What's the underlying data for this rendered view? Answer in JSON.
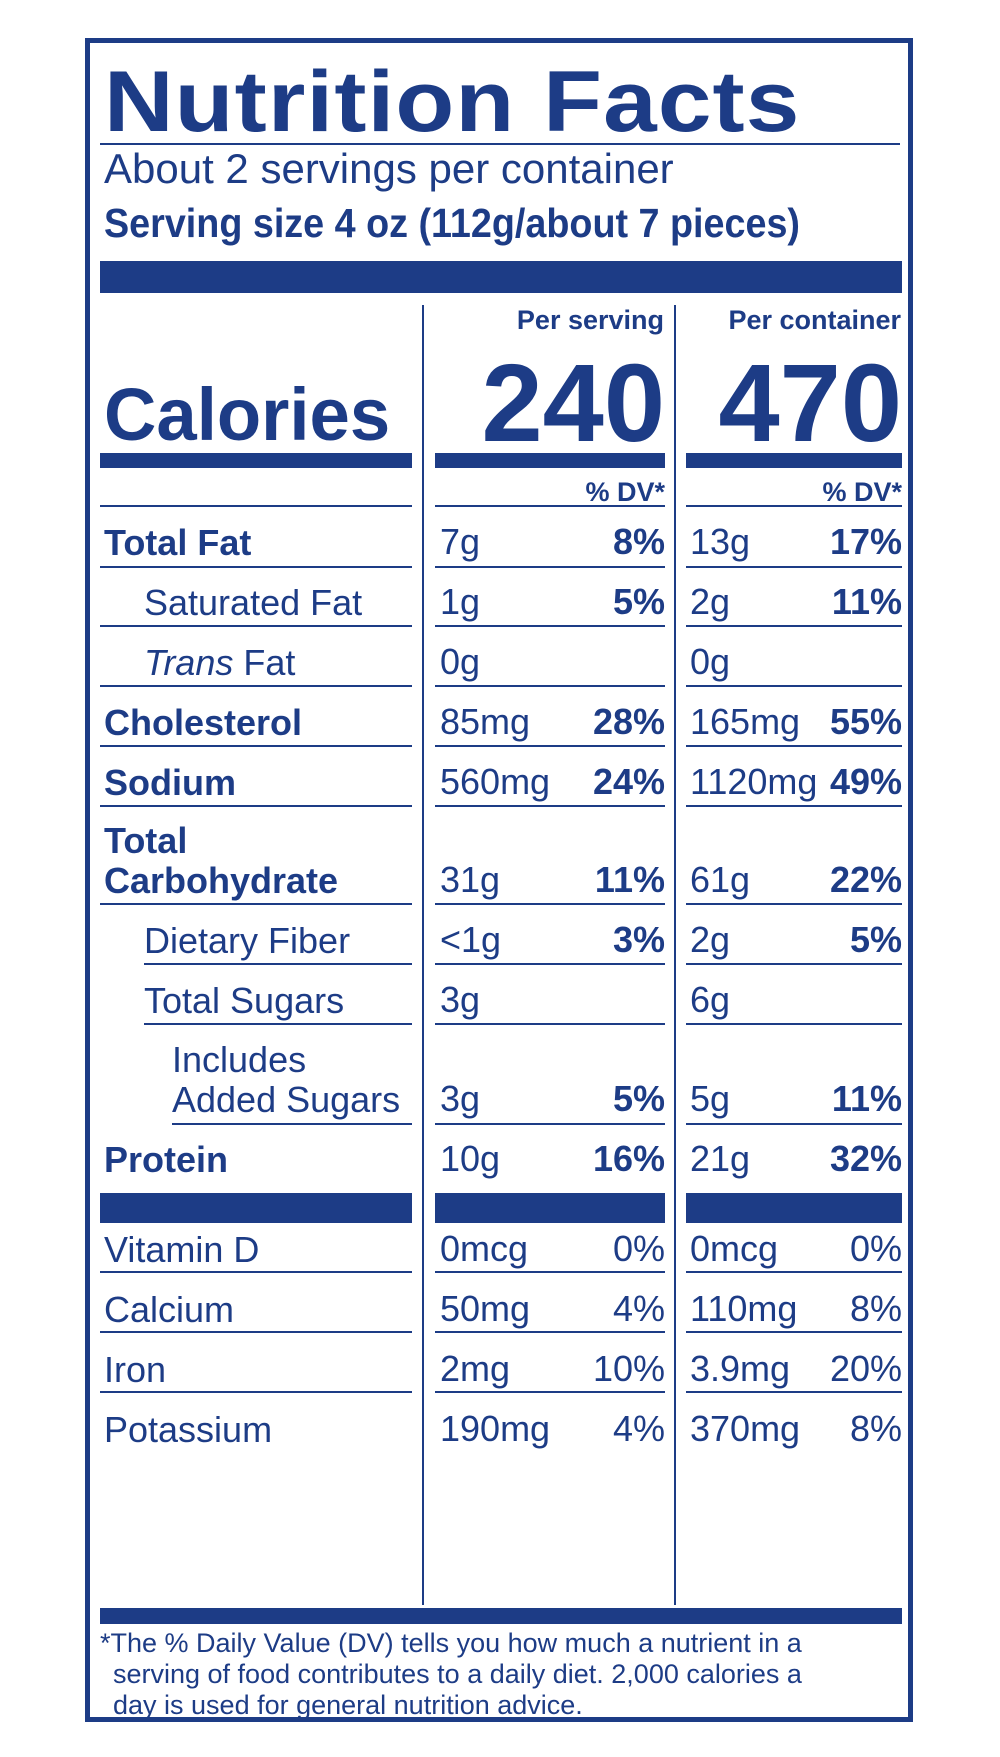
{
  "title": "Nutrition Facts",
  "servings_per_container": "About 2 servings per container",
  "serving_size": "Serving size  4 oz (112g/about 7 pieces)",
  "columns": {
    "per_serving": "Per serving",
    "per_container": "Per container"
  },
  "calories": {
    "label": "Calories",
    "per_serving": "240",
    "per_container": "470"
  },
  "dv_header": "% DV*",
  "nutrients": [
    {
      "name": "Total Fat",
      "serving_amt": "7g",
      "serving_dv": "8%",
      "container_amt": "13g",
      "container_dv": "17%"
    },
    {
      "name": "Saturated Fat",
      "serving_amt": "1g",
      "serving_dv": "5%",
      "container_amt": "2g",
      "container_dv": "11%"
    },
    {
      "name_italic": "Trans",
      "name": " Fat",
      "serving_amt": "0g",
      "serving_dv": "",
      "container_amt": "0g",
      "container_dv": ""
    },
    {
      "name": "Cholesterol",
      "serving_amt": "85mg",
      "serving_dv": "28%",
      "container_amt": "165mg",
      "container_dv": "55%"
    },
    {
      "name": "Sodium",
      "serving_amt": "560mg",
      "serving_dv": "24%",
      "container_amt": "1120mg",
      "container_dv": "49%"
    },
    {
      "name_line1": "Total",
      "name_line2": "Carbohydrate",
      "serving_amt": "31g",
      "serving_dv": "11%",
      "container_amt": "61g",
      "container_dv": "22%"
    },
    {
      "name": "Dietary Fiber",
      "serving_amt": "<1g",
      "serving_dv": "3%",
      "container_amt": "2g",
      "container_dv": "5%"
    },
    {
      "name": "Total Sugars",
      "serving_amt": "3g",
      "serving_dv": "",
      "container_amt": "6g",
      "container_dv": ""
    },
    {
      "name_line1": "Includes",
      "name_line2": "Added Sugars",
      "serving_amt": "3g",
      "serving_dv": "5%",
      "container_amt": "5g",
      "container_dv": "11%"
    },
    {
      "name": "Protein",
      "serving_amt": "10g",
      "serving_dv": "16%",
      "container_amt": "21g",
      "container_dv": "32%"
    }
  ],
  "vitamins": [
    {
      "name": "Vitamin D",
      "serving_amt": "0mcg",
      "serving_dv": "0%",
      "container_amt": "0mcg",
      "container_dv": "0%"
    },
    {
      "name": "Calcium",
      "serving_amt": "50mg",
      "serving_dv": "4%",
      "container_amt": "110mg",
      "container_dv": "8%"
    },
    {
      "name": "Iron",
      "serving_amt": "2mg",
      "serving_dv": "10%",
      "container_amt": "3.9mg",
      "container_dv": "20%"
    },
    {
      "name": "Potassium",
      "serving_amt": "190mg",
      "serving_dv": "4%",
      "container_amt": "370mg",
      "container_dv": "8%"
    }
  ],
  "footnote": {
    "line1": "*The % Daily Value (DV) tells you how much a nutrient in a",
    "line2": "serving of food contributes to a daily diet. 2,000 calories a",
    "line3": "day is used for general nutrition advice."
  },
  "colors": {
    "ink": "#1d3c86",
    "background": "#ffffff"
  }
}
